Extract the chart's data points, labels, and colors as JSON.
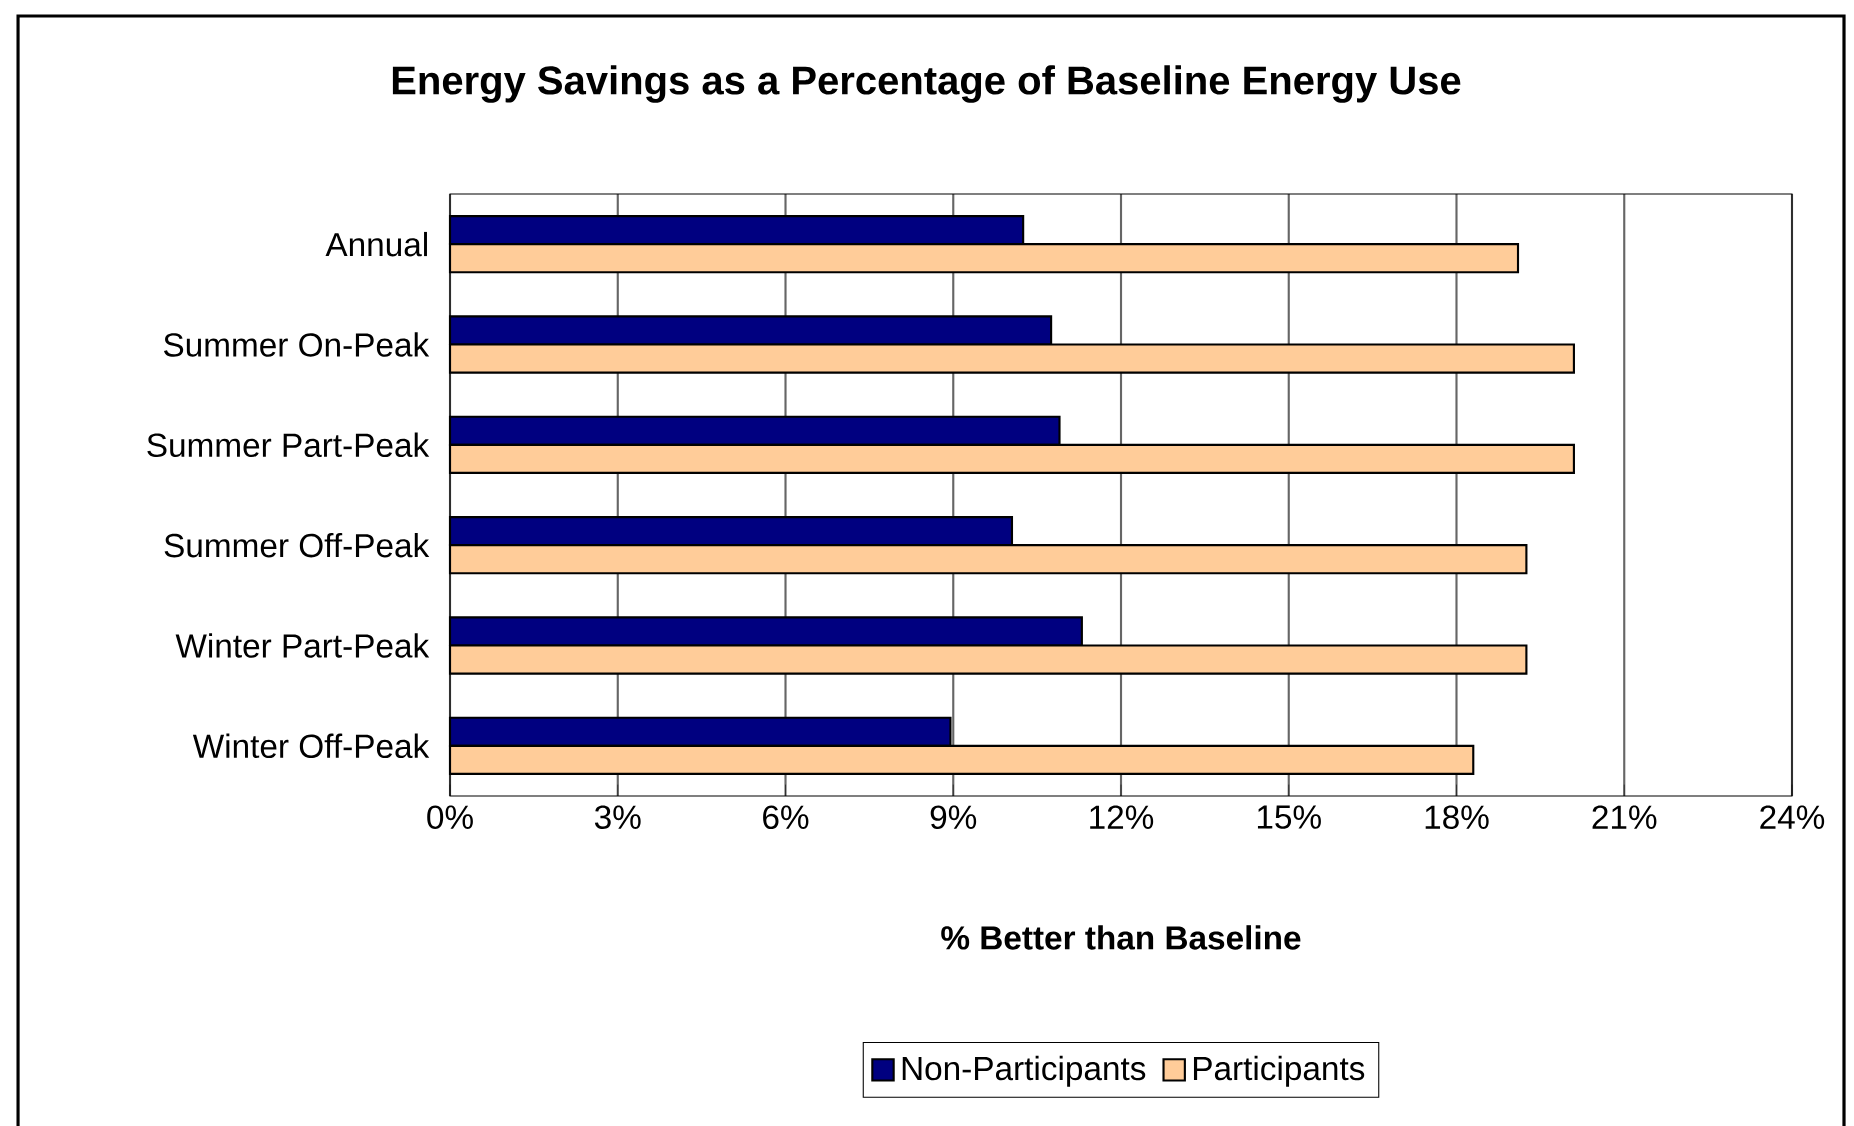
{
  "chart_data": {
    "type": "bar",
    "orientation": "horizontal",
    "title": "Energy Savings as a Percentage of Baseline Energy Use",
    "xlabel": "% Better than Baseline",
    "categories": [
      "Annual",
      "Summer On-Peak",
      "Summer Part-Peak",
      "Summer Off-Peak",
      "Winter Part-Peak",
      "Winter Off-Peak"
    ],
    "series": [
      {
        "name": "Non-Participants",
        "color": "#000080",
        "values": [
          10.25,
          10.75,
          10.9,
          10.05,
          11.3,
          8.95
        ]
      },
      {
        "name": "Participants",
        "color": "#ffcc99",
        "values": [
          19.1,
          20.1,
          20.1,
          19.25,
          19.25,
          18.3
        ]
      }
    ],
    "xlim": [
      0,
      24
    ],
    "xticks": [
      {
        "value": 0,
        "label": "0%"
      },
      {
        "value": 3,
        "label": "3%"
      },
      {
        "value": 6,
        "label": "6%"
      },
      {
        "value": 9,
        "label": "9%"
      },
      {
        "value": 12,
        "label": "12%"
      },
      {
        "value": 15,
        "label": "15%"
      },
      {
        "value": 18,
        "label": "18%"
      },
      {
        "value": 21,
        "label": "21%"
      },
      {
        "value": 24,
        "label": "24%"
      }
    ],
    "grid": "x",
    "legend": "bottom"
  }
}
